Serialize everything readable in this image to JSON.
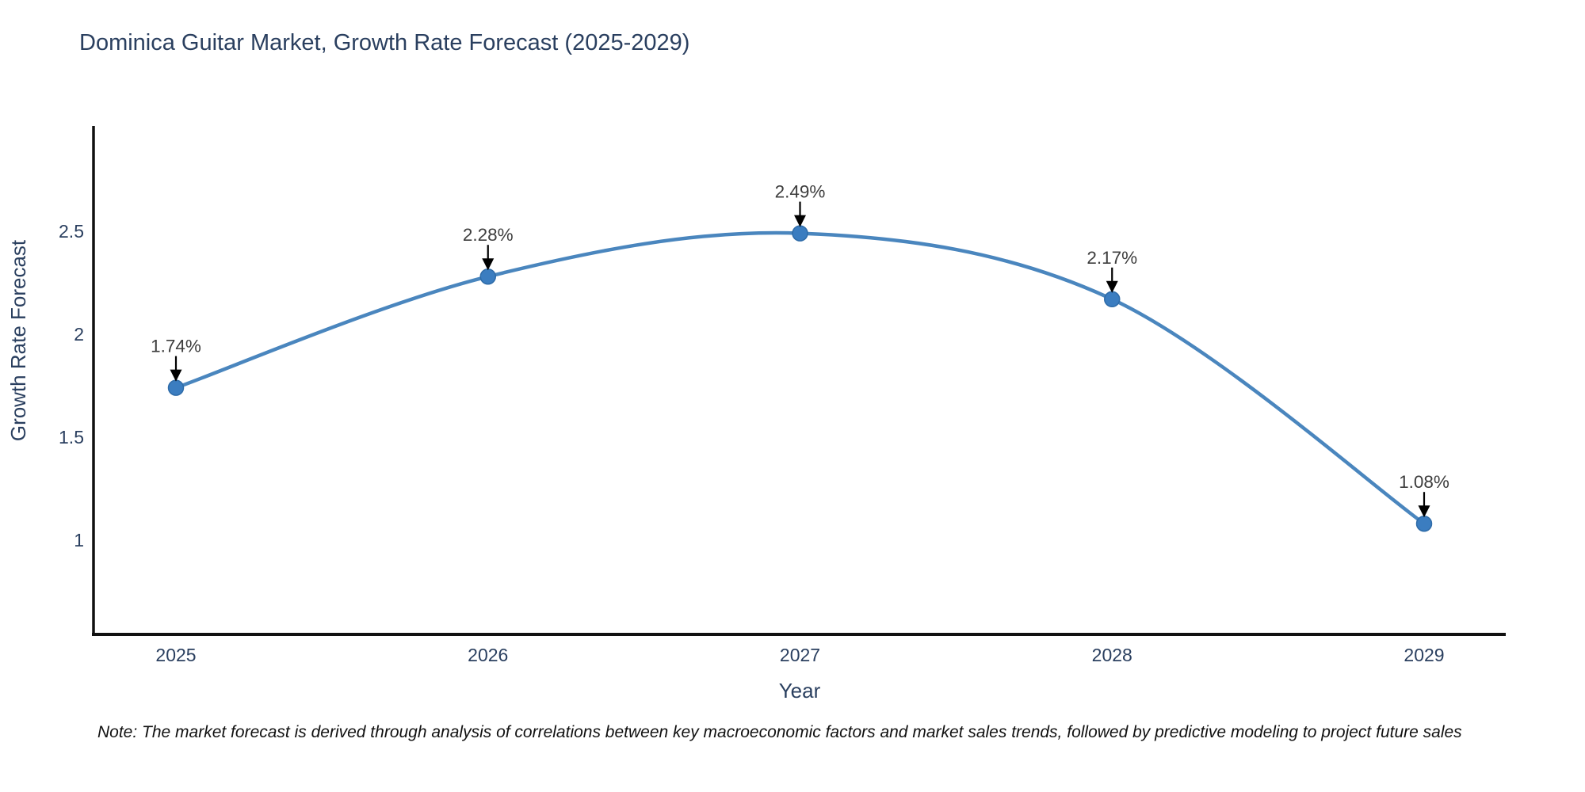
{
  "page": {
    "background_color": "#ffffff"
  },
  "chart": {
    "title": "Dominica Guitar Market, Growth Rate Forecast (2025-2029)",
    "note": "Note: The market forecast is derived through analysis of correlations between key macroeconomic factors and market sales trends, followed by predictive modeling to project future sales",
    "colors": {
      "title_text": "#2a3f5f",
      "tick_text": "#2a3f5f",
      "annotation_text": "#3d3d3d",
      "line": "#4a86be",
      "marker_fill": "#3b7dc0",
      "marker_edge": "#2e6ba8",
      "axis_line": "#111111",
      "arrow": "#000000"
    }
  },
  "chart_data": {
    "type": "line",
    "title": "Dominica Guitar Market, Growth Rate Forecast (2025-2029)",
    "xlabel": "Year",
    "ylabel": "Growth Rate Forecast",
    "x": [
      2025,
      2026,
      2027,
      2028,
      2029
    ],
    "series": [
      {
        "name": "Growth Rate Forecast",
        "values": [
          1.74,
          2.28,
          2.49,
          2.17,
          1.08
        ]
      }
    ],
    "point_labels": [
      "1.74%",
      "2.28%",
      "2.49%",
      "2.17%",
      "1.08%"
    ],
    "xtick_labels": [
      "2025",
      "2026",
      "2027",
      "2028",
      "2029"
    ],
    "ytick_values": [
      2.5,
      2,
      1.5,
      1
    ],
    "ytick_labels": [
      "2.5",
      "2",
      "1.5",
      "1"
    ],
    "xlim": [
      2024.73,
      2029.26
    ],
    "ylim": [
      0.54,
      3.01
    ],
    "line_shape": "spline",
    "grid": false,
    "legend": false,
    "markers": true,
    "annotations": "value labels with down arrows above each point"
  }
}
